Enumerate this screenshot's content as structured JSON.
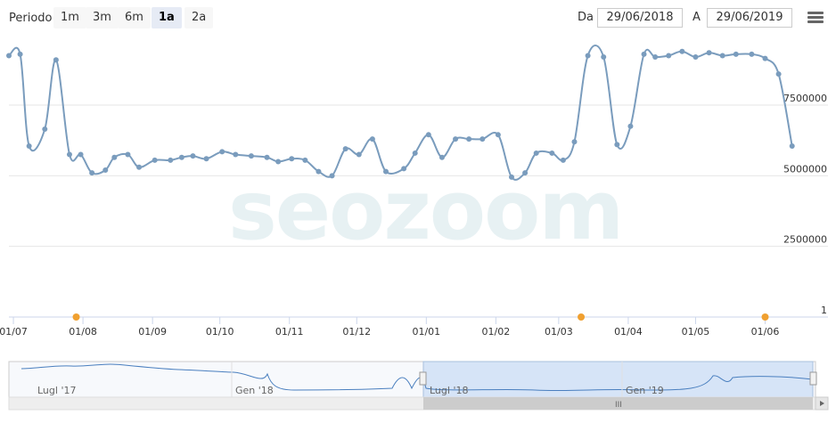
{
  "toolbar": {
    "period_label": "Periodo",
    "range_buttons": [
      {
        "label": "1m",
        "active": false
      },
      {
        "label": "3m",
        "active": false
      },
      {
        "label": "6m",
        "active": false
      },
      {
        "label": "1a",
        "active": true
      },
      {
        "label": "2a",
        "active": false
      }
    ],
    "from_label": "Da",
    "from_value": "29/06/2018",
    "to_label": "A",
    "to_value": "29/06/2019",
    "menu_icon": "hamburger-menu-icon"
  },
  "watermark": "seozoom",
  "chart_data": {
    "type": "line",
    "y_ticks": [
      {
        "value": 1,
        "label": "1"
      },
      {
        "value": 2500000,
        "label": "2500000"
      },
      {
        "value": 5000000,
        "label": "5000000"
      },
      {
        "value": 7500000,
        "label": "7500000"
      }
    ],
    "ylim": [
      1,
      9800000
    ],
    "xlim": [
      "2018-06-29",
      "2019-06-29"
    ],
    "x_ticks": [
      {
        "date": "2018-07-01",
        "label": "01/07"
      },
      {
        "date": "2018-08-01",
        "label": "01/08"
      },
      {
        "date": "2018-09-01",
        "label": "01/09"
      },
      {
        "date": "2018-10-01",
        "label": "01/10"
      },
      {
        "date": "2018-11-01",
        "label": "01/11"
      },
      {
        "date": "2018-12-01",
        "label": "01/12"
      },
      {
        "date": "2019-01-01",
        "label": "01/01"
      },
      {
        "date": "2019-02-01",
        "label": "01/02"
      },
      {
        "date": "2019-03-01",
        "label": "01/03"
      },
      {
        "date": "2019-04-01",
        "label": "01/04"
      },
      {
        "date": "2019-05-01",
        "label": "01/05"
      },
      {
        "date": "2019-06-01",
        "label": "01/06"
      }
    ],
    "series": [
      {
        "color": "#7a9cbd",
        "points": [
          [
            "2018-06-29",
            9250000
          ],
          [
            "2018-07-04",
            9300000
          ],
          [
            "2018-07-08",
            6050000
          ],
          [
            "2018-07-15",
            6650000
          ],
          [
            "2018-07-20",
            9100000
          ],
          [
            "2018-07-26",
            5750000
          ],
          [
            "2018-07-31",
            5750000
          ],
          [
            "2018-08-05",
            5100000
          ],
          [
            "2018-08-11",
            5200000
          ],
          [
            "2018-08-15",
            5650000
          ],
          [
            "2018-08-21",
            5750000
          ],
          [
            "2018-08-26",
            5300000
          ],
          [
            "2018-09-02",
            5550000
          ],
          [
            "2018-09-09",
            5550000
          ],
          [
            "2018-09-14",
            5650000
          ],
          [
            "2018-09-19",
            5700000
          ],
          [
            "2018-09-25",
            5600000
          ],
          [
            "2018-10-02",
            5850000
          ],
          [
            "2018-10-08",
            5750000
          ],
          [
            "2018-10-15",
            5700000
          ],
          [
            "2018-10-22",
            5650000
          ],
          [
            "2018-10-27",
            5500000
          ],
          [
            "2018-11-02",
            5600000
          ],
          [
            "2018-11-08",
            5550000
          ],
          [
            "2018-11-14",
            5150000
          ],
          [
            "2018-11-20",
            5000000
          ],
          [
            "2018-11-26",
            5950000
          ],
          [
            "2018-12-02",
            5750000
          ],
          [
            "2018-12-08",
            6300000
          ],
          [
            "2018-12-14",
            5150000
          ],
          [
            "2018-12-22",
            5250000
          ],
          [
            "2018-12-27",
            5800000
          ],
          [
            "2019-01-02",
            6450000
          ],
          [
            "2019-01-08",
            5650000
          ],
          [
            "2019-01-14",
            6300000
          ],
          [
            "2019-01-20",
            6300000
          ],
          [
            "2019-01-26",
            6300000
          ],
          [
            "2019-02-02",
            6450000
          ],
          [
            "2019-02-08",
            4950000
          ],
          [
            "2019-02-14",
            5100000
          ],
          [
            "2019-02-19",
            5800000
          ],
          [
            "2019-02-26",
            5800000
          ],
          [
            "2019-03-03",
            5550000
          ],
          [
            "2019-03-08",
            6200000
          ],
          [
            "2019-03-14",
            9250000
          ],
          [
            "2019-03-21",
            9200000
          ],
          [
            "2019-03-27",
            6100000
          ],
          [
            "2019-04-02",
            6750000
          ],
          [
            "2019-04-08",
            9300000
          ],
          [
            "2019-04-13",
            9200000
          ],
          [
            "2019-04-19",
            9250000
          ],
          [
            "2019-04-25",
            9400000
          ],
          [
            "2019-05-01",
            9200000
          ],
          [
            "2019-05-07",
            9350000
          ],
          [
            "2019-05-13",
            9250000
          ],
          [
            "2019-05-19",
            9300000
          ],
          [
            "2019-05-26",
            9300000
          ],
          [
            "2019-06-01",
            9150000
          ],
          [
            "2019-06-07",
            8600000
          ],
          [
            "2019-06-13",
            6050000
          ]
        ]
      }
    ],
    "event_markers": [
      {
        "date": "2018-07-29",
        "color": "#f0a030"
      },
      {
        "date": "2019-03-11",
        "color": "#f0a030"
      },
      {
        "date": "2019-06-01",
        "color": "#f0a030"
      }
    ],
    "navigator": {
      "labels": [
        "Lugl '17",
        "Gen '18",
        "Lugl '18",
        "Gen '19"
      ],
      "selected_range": [
        "Lugl '18",
        "Gen '19"
      ]
    }
  }
}
